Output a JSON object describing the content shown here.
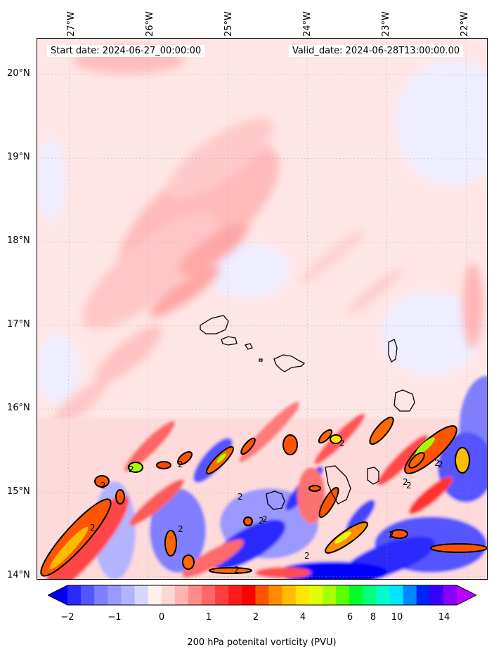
{
  "map": {
    "start_label": "Start date: 2024-06-27_00:00:00",
    "valid_label": "Valid_date: 2024-06-28T13:00:00.00",
    "longitude_labels": [
      "27°W",
      "26°W",
      "25°W",
      "24°W",
      "23°W",
      "22°W"
    ],
    "latitude_labels": [
      "20°N",
      "19°N",
      "18°N",
      "17°N",
      "16°N",
      "15°N",
      "14°N"
    ],
    "contour_label": "2"
  },
  "colorbar": {
    "tick_labels": [
      "−2",
      "−1",
      "0",
      "1",
      "2",
      "4",
      "6",
      "8",
      "10",
      "14"
    ],
    "label": "200 hPa potenital vorticity (PVU)",
    "colors": [
      "#0000ff",
      "#2a2aff",
      "#5555ff",
      "#7f7fff",
      "#9999ff",
      "#b3b3ff",
      "#d6d6ff",
      "#fff0f0",
      "#ffd6d6",
      "#ffb3b3",
      "#ff8a8a",
      "#ff6666",
      "#ff3f3f",
      "#ff1a1a",
      "#ff0000",
      "#ff5500",
      "#ff8c00",
      "#ffbb00",
      "#ffe600",
      "#e1ff00",
      "#a8ff00",
      "#5bff00",
      "#00ff2a",
      "#00ff7f",
      "#00ffc8",
      "#00e5ff",
      "#0088ff",
      "#0022ff",
      "#3a00ff",
      "#8a00ff",
      "#bb00ff"
    ]
  }
}
